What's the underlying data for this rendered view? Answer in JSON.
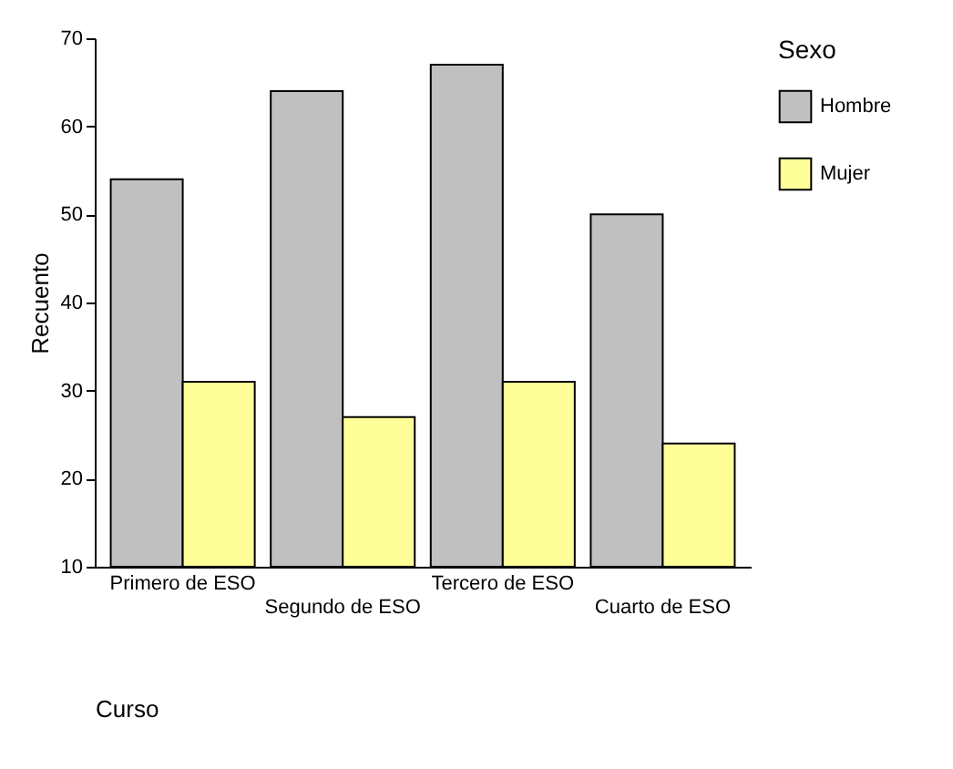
{
  "chart_data": {
    "type": "bar",
    "xlabel": "Curso",
    "ylabel": "Recuento",
    "legend_title": "Sexo",
    "categories": [
      "Primero de ESO",
      "Segundo de ESO",
      "Tercero de ESO",
      "Cuarto de ESO"
    ],
    "series": [
      {
        "name": "Hombre",
        "color": "#c0c0c0",
        "values": [
          54,
          64,
          67,
          50
        ]
      },
      {
        "name": "Mujer",
        "color": "#ffff99",
        "values": [
          31,
          27,
          31,
          24
        ]
      }
    ],
    "ylim": [
      10,
      70
    ],
    "yticks": [
      10,
      20,
      30,
      40,
      50,
      60,
      70
    ],
    "grid": false,
    "legend": "right"
  }
}
